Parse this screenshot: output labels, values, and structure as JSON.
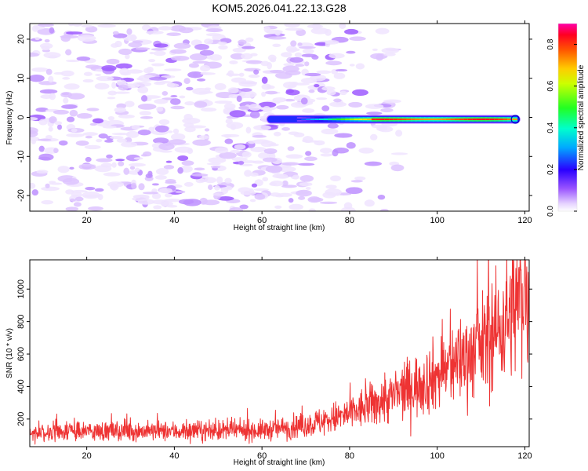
{
  "chart_data": [
    {
      "type": "heatmap",
      "title": "KOM5.2026.041.22.13.G28",
      "xlabel": "Height of straight line (km)",
      "ylabel": "Frequency (Hz)",
      "xlim": [
        7,
        121
      ],
      "ylim": [
        -24,
        24
      ],
      "xticks": [
        20,
        40,
        60,
        80,
        100,
        120
      ],
      "yticks": [
        -20,
        -10,
        0,
        10,
        20
      ],
      "colorbar": {
        "label": "Normalized spectral amplitude",
        "range": [
          0,
          0.9
        ],
        "ticks": [
          0.0,
          0.2,
          0.4,
          0.6,
          0.8
        ]
      },
      "signal_track": {
        "frequency_hz": -0.5,
        "start_km": 62,
        "end_km": 118,
        "peak_amplitude": 0.9,
        "peak_span_km": [
          85,
          118
        ]
      },
      "noise_region": {
        "x_range_km": [
          7,
          78
        ],
        "typical_amplitude": 0.1
      }
    },
    {
      "type": "line",
      "xlabel": "Height of straight line (km)",
      "ylabel": "SNR (10 * v/v)",
      "xlim": [
        7,
        121
      ],
      "ylim": [
        30,
        1180
      ],
      "xticks": [
        20,
        40,
        60,
        80,
        100,
        120
      ],
      "yticks": [
        200,
        400,
        600,
        800,
        1000
      ],
      "series": [
        {
          "name": "SNR",
          "color": "#ee3333",
          "trend": {
            "x": [
              7,
              20,
              40,
              60,
              70,
              80,
              90,
              100,
              110,
              115,
              120,
              121
            ],
            "y": [
              120,
              125,
              125,
              130,
              160,
              230,
              340,
              470,
              650,
              780,
              1000,
              930
            ]
          },
          "noise_std_fraction": 0.28
        }
      ]
    }
  ]
}
